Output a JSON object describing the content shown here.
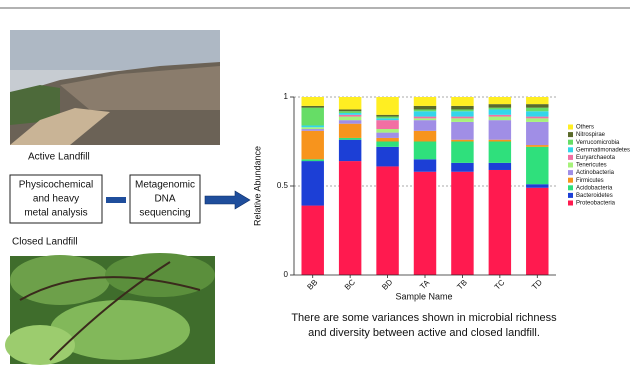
{
  "labels": {
    "active": "Active Landfill",
    "closed": "Closed Landfill",
    "analysis": [
      "Physicochemical",
      "and heavy",
      "metal analysis"
    ],
    "sequencing": [
      "Metagenomic",
      "DNA",
      "sequencing"
    ],
    "caption": [
      "There are some variances shown in microbial richness",
      "and diversity between active and closed landfill."
    ]
  },
  "chart_data": {
    "type": "stacked-bar",
    "x_label": "Sample Name",
    "y_label": "Relative Abundance",
    "categories": [
      "BB",
      "BC",
      "BD",
      "TA",
      "TB",
      "TC",
      "TD"
    ],
    "ylim": [
      0,
      1
    ],
    "yticks": [
      0,
      0.5,
      1
    ],
    "reference_lines": [
      0.5,
      1
    ],
    "series": [
      {
        "name": "Proteobacteria",
        "color": "#ff1a4f",
        "values": [
          0.39,
          0.64,
          0.61,
          0.58,
          0.58,
          0.59,
          0.49
        ]
      },
      {
        "name": "Bacteroidetes",
        "color": "#1c3fd6",
        "values": [
          0.25,
          0.12,
          0.11,
          0.07,
          0.05,
          0.04,
          0.02
        ]
      },
      {
        "name": "Acidobacteria",
        "color": "#2fe07c",
        "values": [
          0.01,
          0.01,
          0.03,
          0.1,
          0.12,
          0.12,
          0.21
        ]
      },
      {
        "name": "Firmicutes",
        "color": "#f7941d",
        "values": [
          0.16,
          0.08,
          0.02,
          0.06,
          0.01,
          0.01,
          0.01
        ]
      },
      {
        "name": "Actinobacteria",
        "color": "#a08ee6",
        "values": [
          0.01,
          0.02,
          0.03,
          0.06,
          0.1,
          0.11,
          0.13
        ]
      },
      {
        "name": "Tenericutes",
        "color": "#a6f27a",
        "values": [
          0.01,
          0.02,
          0.02,
          0.01,
          0.02,
          0.02,
          0.02
        ]
      },
      {
        "name": "Euryarchaeota",
        "color": "#f26fa3",
        "values": [
          0,
          0.01,
          0.05,
          0.01,
          0.01,
          0.01,
          0.01
        ]
      },
      {
        "name": "Gemmatimonadetes",
        "color": "#33d6ea",
        "values": [
          0.01,
          0.01,
          0.01,
          0.03,
          0.03,
          0.03,
          0.03
        ]
      },
      {
        "name": "Verrucomicrobia",
        "color": "#66dd66",
        "values": [
          0.1,
          0.01,
          0.01,
          0.01,
          0.01,
          0.01,
          0.02
        ]
      },
      {
        "name": "Nitrospirae",
        "color": "#5a6a2a",
        "values": [
          0.01,
          0.01,
          0.01,
          0.02,
          0.02,
          0.02,
          0.02
        ]
      },
      {
        "name": "Others",
        "color": "#ffee22",
        "values": [
          0.05,
          0.07,
          0.1,
          0.05,
          0.05,
          0.04,
          0.04
        ]
      }
    ]
  }
}
